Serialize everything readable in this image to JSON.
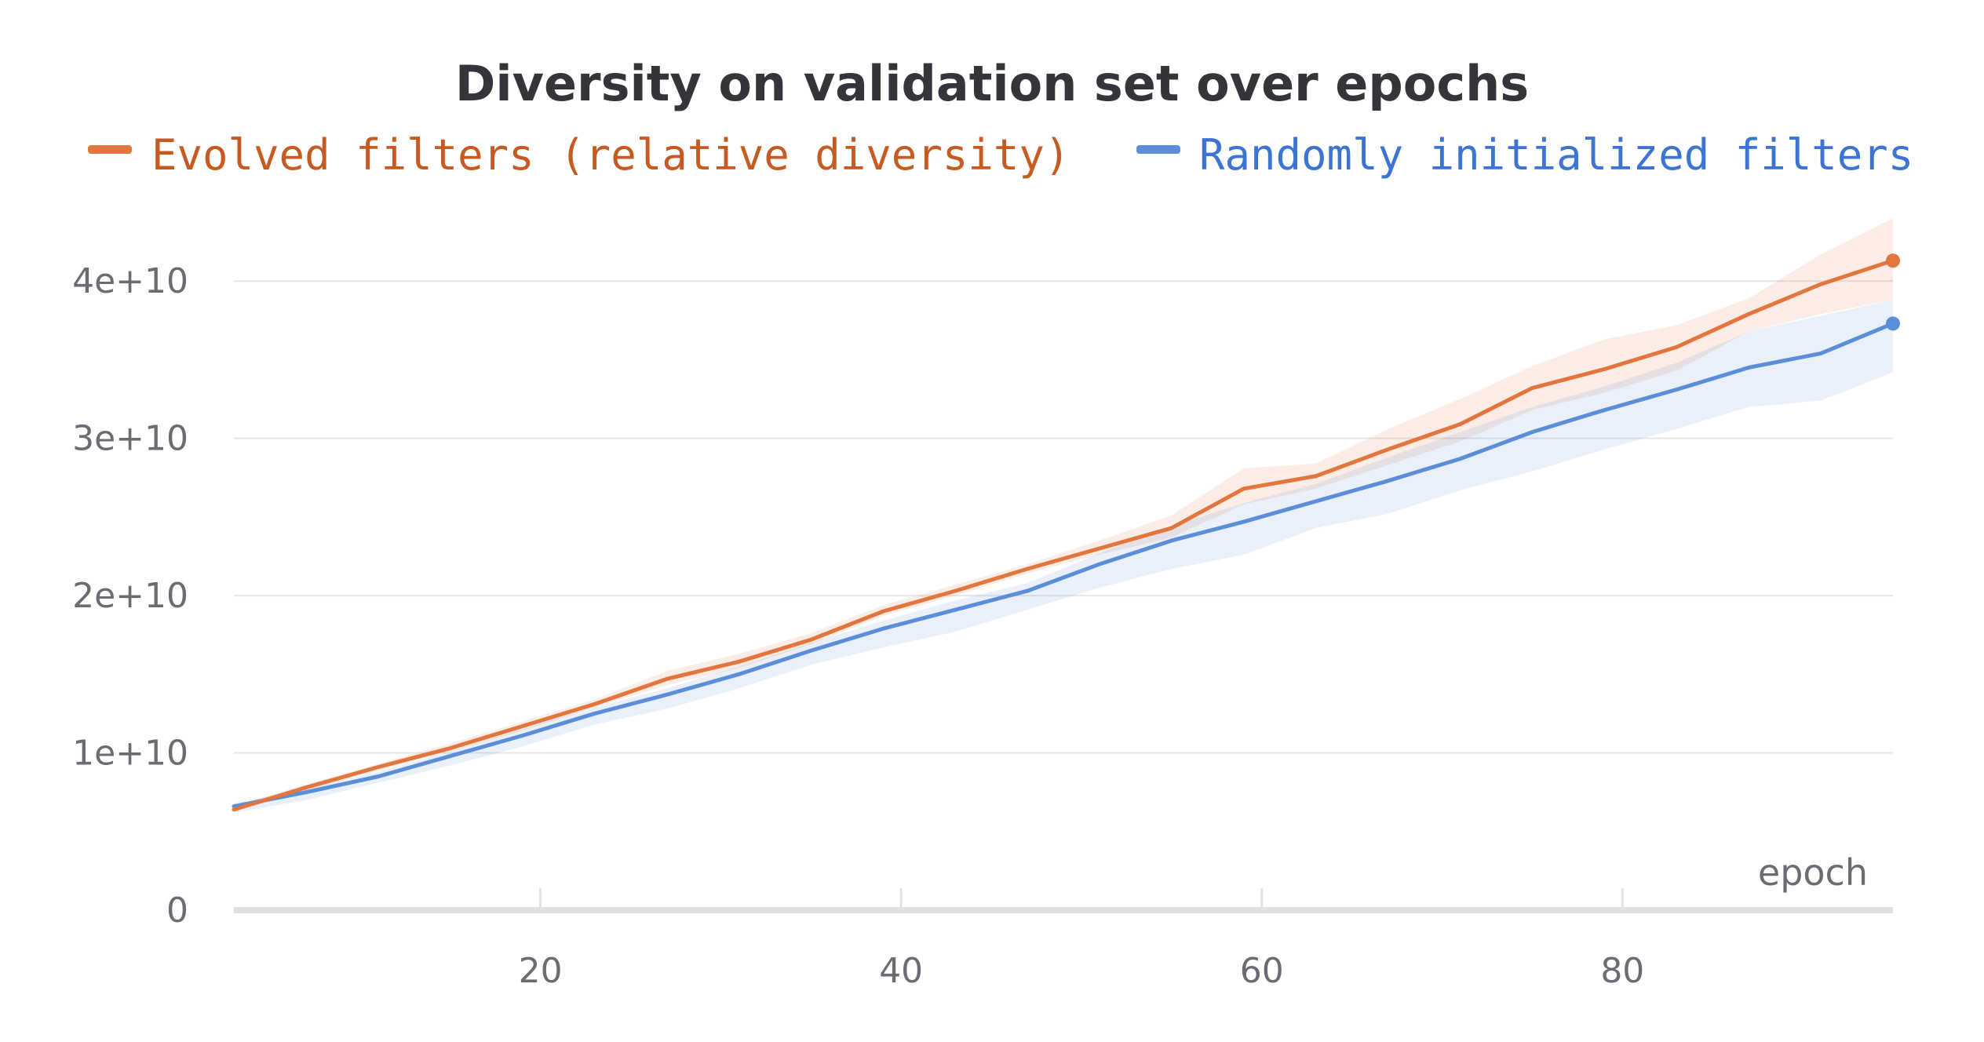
{
  "chart_data": {
    "type": "line",
    "title": "Diversity on validation set over epochs",
    "xlabel": "epoch",
    "ylabel": "",
    "xlim": [
      3,
      95
    ],
    "ylim": [
      0,
      45000000000
    ],
    "x_ticks": [
      20,
      40,
      60,
      80
    ],
    "y_ticks": [
      0,
      10000000000,
      20000000000,
      30000000000,
      40000000000
    ],
    "y_tick_labels": [
      "0",
      "1e+10",
      "2e+10",
      "3e+10",
      "4e+10"
    ],
    "grid": "horizontal",
    "legend_placement": "top",
    "x": [
      3,
      7,
      11,
      15,
      19,
      23,
      27,
      31,
      35,
      39,
      43,
      47,
      51,
      55,
      59,
      63,
      67,
      71,
      75,
      79,
      83,
      87,
      91,
      95
    ],
    "series": [
      {
        "name": "Evolved filters (relative diversity)",
        "color": "#e2763e",
        "text_color": "#c65a20",
        "values": [
          6400000000,
          7800000000,
          9100000000,
          10300000000,
          11700000000,
          13100000000,
          14700000000,
          15800000000,
          17200000000,
          19000000000,
          20300000000,
          21700000000,
          23000000000,
          24300000000,
          26800000000,
          27600000000,
          29300000000,
          30900000000,
          33200000000,
          34400000000,
          35800000000,
          37900000000,
          39800000000,
          41300000000
        ],
        "band_lower": [
          6300000000,
          7600000000,
          8900000000,
          10100000000,
          11400000000,
          12900000000,
          14300000000,
          15400000000,
          16900000000,
          18700000000,
          20000000000,
          21400000000,
          22600000000,
          23700000000,
          25800000000,
          26800000000,
          28300000000,
          29800000000,
          31800000000,
          32900000000,
          34300000000,
          36800000000,
          37900000000,
          38800000000
        ],
        "band_upper": [
          6600000000,
          8000000000,
          9300000000,
          10600000000,
          12000000000,
          13400000000,
          15200000000,
          16300000000,
          17600000000,
          19400000000,
          20700000000,
          22000000000,
          23500000000,
          25100000000,
          28100000000,
          28400000000,
          30600000000,
          32500000000,
          34600000000,
          36300000000,
          37200000000,
          38900000000,
          41700000000,
          44000000000
        ]
      },
      {
        "name": "Randomly initialized filters",
        "color": "#5b8ed8",
        "text_color": "#3b74d1",
        "values": [
          6600000000,
          7500000000,
          8500000000,
          9800000000,
          11100000000,
          12500000000,
          13700000000,
          15000000000,
          16500000000,
          17900000000,
          19100000000,
          20300000000,
          22000000000,
          23500000000,
          24700000000,
          26000000000,
          27300000000,
          28700000000,
          30400000000,
          31800000000,
          33100000000,
          34500000000,
          35400000000,
          37300000000
        ],
        "band_lower": [
          6200000000,
          7000000000,
          8100000000,
          9200000000,
          10400000000,
          11800000000,
          12800000000,
          14100000000,
          15600000000,
          16700000000,
          17700000000,
          19100000000,
          20500000000,
          21700000000,
          22600000000,
          24300000000,
          25200000000,
          26700000000,
          27900000000,
          29300000000,
          30600000000,
          32000000000,
          32400000000,
          34200000000
        ],
        "band_upper": [
          6800000000,
          7700000000,
          8800000000,
          10100000000,
          11500000000,
          12900000000,
          14100000000,
          15500000000,
          17000000000,
          18400000000,
          19700000000,
          20800000000,
          22700000000,
          24400000000,
          25900000000,
          27100000000,
          28800000000,
          30400000000,
          32000000000,
          33300000000,
          34800000000,
          36800000000,
          37800000000,
          38800000000
        ]
      }
    ]
  }
}
